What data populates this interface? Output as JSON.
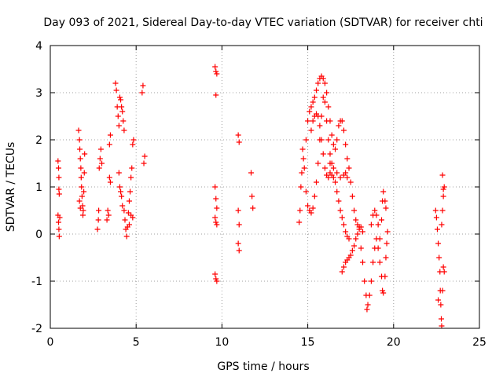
{
  "chart_data": {
    "type": "scatter",
    "title": "Day 093 of 2021, Sidereal Day-to-day VTEC variation (SDTVAR) for receiver chti",
    "xlabel": "GPS time / hours",
    "ylabel": "SDTVAR / TECUs",
    "xlim": [
      0,
      25
    ],
    "ylim": [
      -2,
      4
    ],
    "xticks": [
      0,
      5,
      10,
      15,
      20,
      25
    ],
    "yticks": [
      -2,
      -1,
      0,
      1,
      2,
      3,
      4
    ],
    "xtick_labels": [
      "0",
      "5",
      "10",
      "15",
      "20",
      "25"
    ],
    "ytick_labels": [
      "-2",
      "-1",
      "0",
      "1",
      "2",
      "3",
      "4"
    ],
    "grid": true,
    "marker": "+",
    "color": "#ff0000",
    "series": [
      {
        "name": "sdtvar",
        "points": [
          [
            0.45,
            1.55
          ],
          [
            0.48,
            1.4
          ],
          [
            0.5,
            1.2
          ],
          [
            0.5,
            0.95
          ],
          [
            0.52,
            0.85
          ],
          [
            0.45,
            0.4
          ],
          [
            0.48,
            0.25
          ],
          [
            0.5,
            0.1
          ],
          [
            0.52,
            -0.05
          ],
          [
            0.55,
            0.35
          ],
          [
            1.65,
            2.2
          ],
          [
            1.7,
            2.0
          ],
          [
            1.72,
            1.8
          ],
          [
            1.75,
            1.6
          ],
          [
            1.78,
            1.4
          ],
          [
            1.8,
            1.2
          ],
          [
            1.82,
            1.0
          ],
          [
            1.85,
            0.8
          ],
          [
            1.88,
            0.6
          ],
          [
            1.9,
            0.4
          ],
          [
            1.92,
            0.5
          ],
          [
            1.95,
            0.9
          ],
          [
            1.98,
            1.3
          ],
          [
            2.0,
            1.7
          ],
          [
            1.7,
            0.7
          ],
          [
            1.75,
            0.55
          ],
          [
            2.75,
            0.1
          ],
          [
            2.8,
            0.3
          ],
          [
            2.82,
            0.5
          ],
          [
            2.85,
            1.4
          ],
          [
            2.9,
            1.6
          ],
          [
            2.95,
            1.8
          ],
          [
            3.0,
            1.5
          ],
          [
            3.3,
            0.3
          ],
          [
            3.35,
            0.5
          ],
          [
            3.4,
            0.4
          ],
          [
            3.45,
            1.2
          ],
          [
            3.5,
            1.1
          ],
          [
            3.45,
            1.9
          ],
          [
            3.5,
            2.1
          ],
          [
            3.8,
            3.2
          ],
          [
            3.85,
            3.05
          ],
          [
            3.9,
            2.7
          ],
          [
            3.95,
            2.5
          ],
          [
            4.0,
            2.3
          ],
          [
            4.05,
            2.9
          ],
          [
            4.1,
            2.85
          ],
          [
            4.15,
            2.7
          ],
          [
            4.2,
            2.6
          ],
          [
            4.25,
            2.4
          ],
          [
            4.3,
            2.2
          ],
          [
            4.0,
            1.3
          ],
          [
            4.05,
            1.0
          ],
          [
            4.1,
            0.9
          ],
          [
            4.15,
            0.8
          ],
          [
            4.2,
            0.6
          ],
          [
            4.3,
            0.5
          ],
          [
            4.35,
            0.3
          ],
          [
            4.4,
            0.1
          ],
          [
            4.45,
            -0.05
          ],
          [
            4.5,
            0.15
          ],
          [
            4.55,
            0.45
          ],
          [
            4.6,
            0.7
          ],
          [
            4.65,
            0.9
          ],
          [
            4.7,
            1.2
          ],
          [
            4.75,
            1.4
          ],
          [
            4.8,
            1.9
          ],
          [
            4.85,
            2.0
          ],
          [
            4.6,
            0.2
          ],
          [
            4.7,
            0.4
          ],
          [
            4.8,
            0.35
          ],
          [
            5.35,
            3.0
          ],
          [
            5.4,
            3.15
          ],
          [
            5.45,
            1.5
          ],
          [
            5.5,
            1.65
          ],
          [
            9.6,
            3.55
          ],
          [
            9.65,
            3.45
          ],
          [
            9.7,
            3.4
          ],
          [
            9.65,
            2.95
          ],
          [
            9.6,
            1.0
          ],
          [
            9.65,
            0.75
          ],
          [
            9.7,
            0.55
          ],
          [
            9.6,
            0.35
          ],
          [
            9.65,
            0.25
          ],
          [
            9.7,
            0.2
          ],
          [
            9.6,
            -0.85
          ],
          [
            9.65,
            -0.95
          ],
          [
            9.7,
            -1.0
          ],
          [
            10.95,
            2.1
          ],
          [
            11.0,
            1.95
          ],
          [
            10.95,
            0.5
          ],
          [
            11.0,
            0.2
          ],
          [
            10.95,
            -0.2
          ],
          [
            11.0,
            -0.35
          ],
          [
            11.7,
            1.3
          ],
          [
            11.75,
            0.8
          ],
          [
            11.8,
            0.55
          ],
          [
            14.5,
            0.25
          ],
          [
            14.55,
            0.5
          ],
          [
            14.6,
            1.0
          ],
          [
            14.65,
            1.3
          ],
          [
            14.7,
            1.8
          ],
          [
            14.75,
            1.6
          ],
          [
            14.8,
            1.4
          ],
          [
            14.9,
            0.9
          ],
          [
            15.0,
            0.6
          ],
          [
            15.1,
            0.5
          ],
          [
            15.2,
            0.45
          ],
          [
            15.3,
            0.55
          ],
          [
            15.4,
            0.8
          ],
          [
            15.5,
            1.1
          ],
          [
            15.6,
            1.5
          ],
          [
            15.7,
            2.0
          ],
          [
            15.8,
            2.5
          ],
          [
            15.9,
            2.9
          ],
          [
            16.0,
            2.8
          ],
          [
            16.1,
            2.4
          ],
          [
            16.2,
            2.0
          ],
          [
            16.3,
            1.7
          ],
          [
            16.4,
            1.5
          ],
          [
            14.9,
            2.0
          ],
          [
            15.0,
            2.4
          ],
          [
            15.1,
            2.6
          ],
          [
            15.2,
            2.7
          ],
          [
            15.3,
            2.8
          ],
          [
            15.4,
            2.9
          ],
          [
            15.5,
            3.05
          ],
          [
            15.6,
            3.2
          ],
          [
            15.7,
            3.3
          ],
          [
            15.8,
            3.35
          ],
          [
            15.9,
            3.3
          ],
          [
            16.0,
            3.2
          ],
          [
            16.1,
            3.0
          ],
          [
            16.2,
            2.7
          ],
          [
            16.3,
            2.4
          ],
          [
            16.4,
            2.1
          ],
          [
            16.5,
            1.9
          ],
          [
            16.6,
            1.8
          ],
          [
            16.7,
            2.0
          ],
          [
            16.8,
            2.3
          ],
          [
            16.9,
            2.4
          ],
          [
            17.0,
            2.4
          ],
          [
            17.1,
            2.2
          ],
          [
            17.2,
            1.9
          ],
          [
            17.3,
            1.6
          ],
          [
            17.4,
            1.4
          ],
          [
            17.5,
            1.1
          ],
          [
            17.6,
            0.8
          ],
          [
            17.7,
            0.5
          ],
          [
            17.8,
            0.3
          ],
          [
            17.9,
            0.2
          ],
          [
            18.0,
            0.15
          ],
          [
            15.2,
            2.2
          ],
          [
            15.3,
            2.4
          ],
          [
            15.4,
            2.5
          ],
          [
            15.5,
            2.55
          ],
          [
            15.6,
            2.5
          ],
          [
            15.7,
            2.3
          ],
          [
            15.8,
            2.0
          ],
          [
            15.9,
            1.7
          ],
          [
            16.0,
            1.4
          ],
          [
            16.1,
            1.25
          ],
          [
            16.2,
            1.2
          ],
          [
            16.3,
            1.3
          ],
          [
            16.4,
            1.25
          ],
          [
            16.5,
            1.2
          ],
          [
            16.6,
            1.1
          ],
          [
            16.7,
            0.9
          ],
          [
            16.8,
            0.7
          ],
          [
            16.9,
            0.5
          ],
          [
            17.0,
            0.35
          ],
          [
            17.1,
            0.2
          ],
          [
            17.2,
            0.05
          ],
          [
            17.3,
            -0.05
          ],
          [
            17.4,
            -0.1
          ],
          [
            16.3,
            1.5
          ],
          [
            16.5,
            1.4
          ],
          [
            16.7,
            1.3
          ],
          [
            16.9,
            1.2
          ],
          [
            17.1,
            1.25
          ],
          [
            17.2,
            1.3
          ],
          [
            17.3,
            1.2
          ],
          [
            17.0,
            -0.8
          ],
          [
            17.1,
            -0.7
          ],
          [
            17.2,
            -0.6
          ],
          [
            17.3,
            -0.55
          ],
          [
            17.4,
            -0.5
          ],
          [
            17.5,
            -0.45
          ],
          [
            17.6,
            -0.35
          ],
          [
            17.7,
            -0.25
          ],
          [
            17.8,
            -0.1
          ],
          [
            17.9,
            0.0
          ],
          [
            18.0,
            0.1
          ],
          [
            18.1,
            0.15
          ],
          [
            18.2,
            0.05
          ],
          [
            18.1,
            -0.3
          ],
          [
            18.2,
            -0.6
          ],
          [
            18.3,
            -1.0
          ],
          [
            18.4,
            -1.3
          ],
          [
            18.45,
            -1.6
          ],
          [
            18.5,
            -1.5
          ],
          [
            18.6,
            -1.3
          ],
          [
            18.7,
            -1.0
          ],
          [
            18.8,
            -0.6
          ],
          [
            18.9,
            -0.3
          ],
          [
            19.0,
            -0.1
          ],
          [
            19.1,
            -0.3
          ],
          [
            19.2,
            -0.6
          ],
          [
            19.3,
            -0.9
          ],
          [
            19.35,
            -1.2
          ],
          [
            19.4,
            -1.25
          ],
          [
            19.5,
            -0.9
          ],
          [
            19.55,
            -0.5
          ],
          [
            19.6,
            -0.2
          ],
          [
            19.65,
            0.05
          ],
          [
            18.7,
            0.2
          ],
          [
            18.8,
            0.4
          ],
          [
            18.9,
            0.5
          ],
          [
            19.0,
            0.4
          ],
          [
            19.1,
            0.2
          ],
          [
            19.2,
            -0.1
          ],
          [
            19.3,
            0.3
          ],
          [
            19.35,
            0.7
          ],
          [
            19.4,
            0.9
          ],
          [
            19.5,
            0.7
          ],
          [
            19.55,
            0.55
          ],
          [
            22.45,
            0.5
          ],
          [
            22.5,
            0.35
          ],
          [
            22.55,
            0.1
          ],
          [
            22.6,
            -0.2
          ],
          [
            22.65,
            -0.5
          ],
          [
            22.7,
            -0.8
          ],
          [
            22.72,
            -1.2
          ],
          [
            22.75,
            -1.5
          ],
          [
            22.78,
            -1.8
          ],
          [
            22.8,
            -1.95
          ],
          [
            22.85,
            -1.2
          ],
          [
            22.9,
            -0.7
          ],
          [
            22.95,
            -0.8
          ],
          [
            22.6,
            -1.4
          ],
          [
            22.8,
            0.2
          ],
          [
            22.85,
            0.5
          ],
          [
            22.9,
            0.8
          ],
          [
            22.95,
            1.0
          ],
          [
            22.85,
            1.25
          ],
          [
            22.9,
            0.95
          ]
        ]
      }
    ]
  }
}
